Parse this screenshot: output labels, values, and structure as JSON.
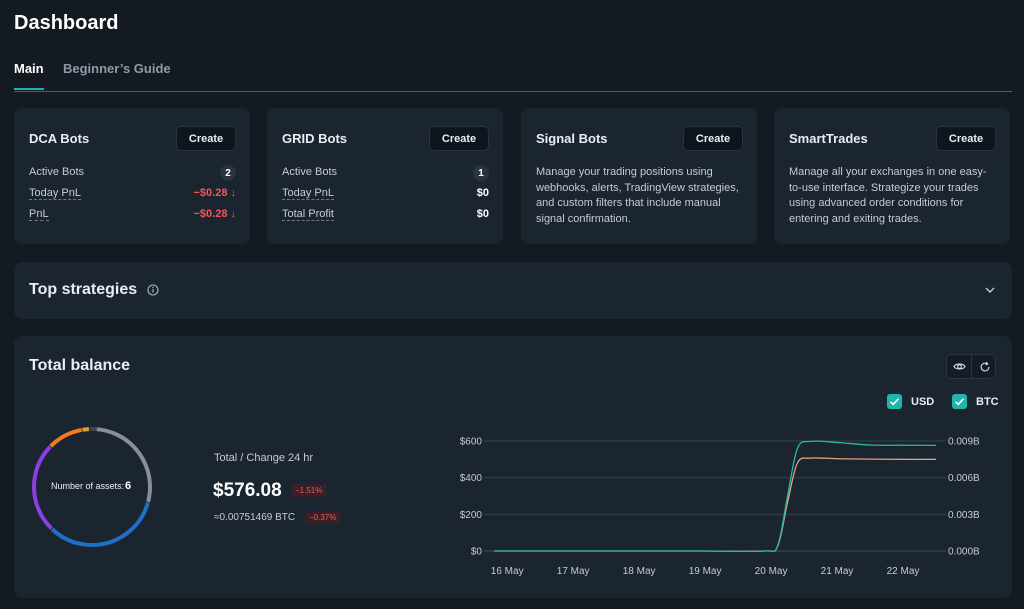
{
  "page": {
    "title": "Dashboard"
  },
  "tabs": [
    {
      "label": "Main",
      "active": true
    },
    {
      "label": "Beginner’s Guide",
      "active": false
    }
  ],
  "cards": {
    "dca": {
      "title": "DCA Bots",
      "create_label": "Create",
      "active_label": "Active Bots",
      "active_count": "2",
      "today_pnl_label": "Today PnL",
      "today_pnl_value": "−$0.28 ↓",
      "pnl_label": "PnL",
      "pnl_value": "−$0.28 ↓"
    },
    "grid": {
      "title": "GRID Bots",
      "create_label": "Create",
      "active_label": "Active Bots",
      "active_count": "1",
      "today_pnl_label": "Today PnL",
      "today_pnl_value": "$0",
      "total_profit_label": "Total Profit",
      "total_profit_value": "$0"
    },
    "signal": {
      "title": "Signal Bots",
      "create_label": "Create",
      "description": "Manage your trading positions using webhooks, alerts, TradingView strategies, and custom filters that include manual signal confirmation."
    },
    "smart": {
      "title": "SmartTrades",
      "create_label": "Create",
      "description": "Manage all your exchanges in one easy-to-use interface. Strategize your trades using advanced order conditions for entering and exiting trades."
    }
  },
  "strategies": {
    "title": "Top strategies",
    "info_icon": "info-circle-icon",
    "chevron_icon": "chevron-down-icon"
  },
  "balance": {
    "title": "Total balance",
    "legend": [
      {
        "label": "USD",
        "checked": true
      },
      {
        "label": "BTC",
        "checked": true
      }
    ],
    "donut_label": "Number of assets:",
    "donut_count": "6",
    "total_caption": "Total / Change 24 hr",
    "total_value": "$576.08",
    "total_change": "−1.51%",
    "btc_value": "≈0.00751469 BTC",
    "btc_change": "−0.37%",
    "colors": {
      "accent": "#1fb5ac",
      "negative": "#f2555a",
      "usd_line": "#27b8a8",
      "btc_line": "#e3a07e"
    }
  },
  "chart_data": {
    "type": "line",
    "x": [
      "16 May",
      "17 May",
      "18 May",
      "19 May",
      "20 May",
      "21 May",
      "22 May"
    ],
    "y_left_ticks": [
      "$0",
      "$200",
      "$400",
      "$600"
    ],
    "y_right_ticks": [
      "0.000B",
      "0.003B",
      "0.006B",
      "0.009B"
    ],
    "ylim_left": [
      0,
      600
    ],
    "ylim_right": [
      0,
      0.009
    ],
    "grid": true,
    "legend_placement": "top-right",
    "series": [
      {
        "name": "USD",
        "axis": "left",
        "color": "#27b8a8",
        "x": [
          15.8,
          16,
          17,
          18,
          19,
          19.9,
          20.1,
          20.25,
          20.4,
          20.6,
          21,
          21.5,
          22,
          22.5
        ],
        "values": [
          0,
          0,
          0,
          0,
          0,
          0,
          30,
          300,
          560,
          598,
          592,
          578,
          577,
          576
        ]
      },
      {
        "name": "BTC",
        "axis": "right",
        "color": "#e3a07e",
        "x": [
          15.8,
          16,
          17,
          18,
          19,
          19.9,
          20.1,
          20.25,
          20.4,
          20.6,
          21,
          21.5,
          22,
          22.5
        ],
        "values": [
          0,
          0,
          0,
          0,
          0,
          0,
          0.0004,
          0.004,
          0.0072,
          0.0076,
          0.00755,
          0.00752,
          0.0075,
          0.0075
        ]
      }
    ],
    "donut": {
      "segments": [
        {
          "name": "asset-1",
          "color": "#8a8f96",
          "fraction": 0.28
        },
        {
          "name": "asset-2",
          "color": "#1f6fc9",
          "fraction": 0.33
        },
        {
          "name": "asset-3",
          "color": "#8a3fe0",
          "fraction": 0.25
        },
        {
          "name": "asset-4",
          "color": "#f07b22",
          "fraction": 0.1
        },
        {
          "name": "asset-5",
          "color": "#d9a02b",
          "fraction": 0.02
        },
        {
          "name": "asset-6",
          "color": "#3f4650",
          "fraction": 0.02
        }
      ]
    }
  }
}
